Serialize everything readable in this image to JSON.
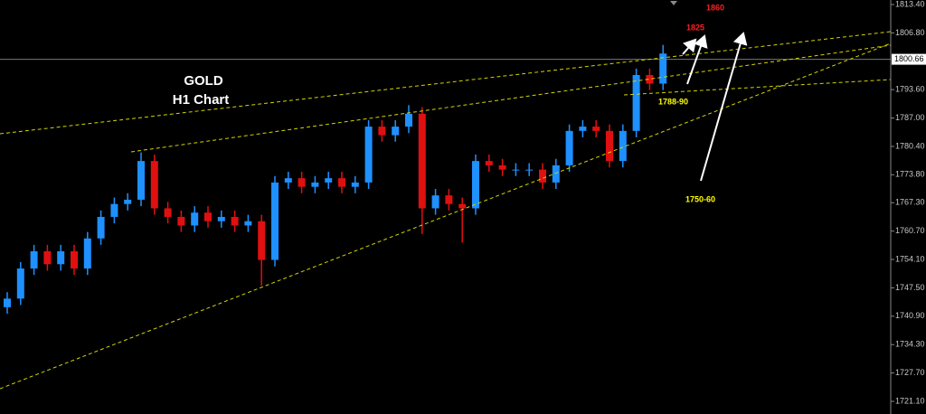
{
  "chart_data": {
    "type": "candlestick",
    "title": "GOLD",
    "subtitle": "H1 Chart",
    "annotations": [
      "1860",
      "1825",
      "1788-90",
      "1750-60"
    ],
    "up_color": "#1e90ff",
    "down_color": "#e01010",
    "open": [
      1743,
      1745,
      1752,
      1756,
      1753,
      1756,
      1752,
      1759,
      1764,
      1767,
      1768,
      1777,
      1766,
      1764,
      1762,
      1765,
      1763,
      1764,
      1762,
      1763,
      1754,
      1772,
      1773,
      1771,
      1772,
      1773,
      1771,
      1772,
      1785,
      1783,
      1785,
      1788,
      1766,
      1769,
      1767,
      1766,
      1777,
      1776,
      1775,
      1775,
      1775,
      1772,
      1776,
      1784,
      1785,
      1784,
      1777,
      1784,
      1797,
      1795
    ],
    "high": [
      1746.5,
      1753.5,
      1757.5,
      1757.5,
      1757.5,
      1757.5,
      1760.5,
      1765.5,
      1768.5,
      1769.5,
      1779,
      1778.5,
      1767.5,
      1765.5,
      1766.5,
      1766.5,
      1765.5,
      1765.5,
      1764.5,
      1764.5,
      1773.5,
      1774.5,
      1774.5,
      1773.5,
      1774.5,
      1774.5,
      1773.5,
      1786.5,
      1786.5,
      1786.5,
      1790,
      1789.5,
      1770.5,
      1770.5,
      1768.5,
      1778.5,
      1778.5,
      1777.5,
      1776.5,
      1776.5,
      1776.5,
      1777.5,
      1785.5,
      1786.5,
      1786.5,
      1785.5,
      1785.5,
      1798.5,
      1798.5,
      1804
    ],
    "low": [
      1741.5,
      1743.5,
      1750.5,
      1751.5,
      1751.5,
      1750.5,
      1750.5,
      1757.5,
      1762.5,
      1765.5,
      1766.5,
      1764.5,
      1762.5,
      1760.5,
      1760.5,
      1761.5,
      1761.5,
      1760.5,
      1760.5,
      1748,
      1752.5,
      1770.5,
      1769.5,
      1769.5,
      1770.5,
      1769.5,
      1769.5,
      1770.5,
      1781.5,
      1781.5,
      1783.5,
      1760,
      1764.5,
      1765.5,
      1758,
      1764.5,
      1774.5,
      1773.5,
      1773.5,
      1773.5,
      1770.5,
      1770.5,
      1774.5,
      1782.5,
      1782.5,
      1775.5,
      1775.5,
      1782.5,
      1793.5,
      1793.5
    ],
    "close": [
      1745,
      1752,
      1756,
      1753,
      1756,
      1752,
      1759,
      1764,
      1767,
      1768,
      1777,
      1766,
      1764,
      1762,
      1765,
      1763,
      1764,
      1762,
      1763,
      1754,
      1772,
      1773,
      1771,
      1772,
      1773,
      1771,
      1772,
      1785,
      1783,
      1785,
      1788,
      1766,
      1769,
      1767,
      1766,
      1777,
      1776,
      1775,
      1775,
      1775,
      1772,
      1776,
      1784,
      1785,
      1784,
      1777,
      1784,
      1797,
      1795,
      1802
    ],
    "ylim": [
      1718.16,
      1814.45
    ],
    "yticks": [
      {
        "value": 1813.4,
        "label": "1813.40"
      },
      {
        "value": 1806.8,
        "label": "1806.80"
      },
      {
        "value": 1793.6,
        "label": "1793.60"
      },
      {
        "value": 1787,
        "label": "1787.00"
      },
      {
        "value": 1780.4,
        "label": "1780.40"
      },
      {
        "value": 1773.8,
        "label": "1773.80"
      },
      {
        "value": 1767.3,
        "label": "1767.30"
      },
      {
        "value": 1760.7,
        "label": "1760.70"
      },
      {
        "value": 1754.1,
        "label": "1754.10"
      },
      {
        "value": 1747.5,
        "label": "1747.50"
      },
      {
        "value": 1740.9,
        "label": "1740.90"
      },
      {
        "value": 1734.3,
        "label": "1734.30"
      },
      {
        "value": 1727.7,
        "label": "1727.70"
      },
      {
        "value": 1721.1,
        "label": "1721.10"
      }
    ],
    "current_price": {
      "value": 1800.66,
      "label": "1800.66"
    }
  }
}
